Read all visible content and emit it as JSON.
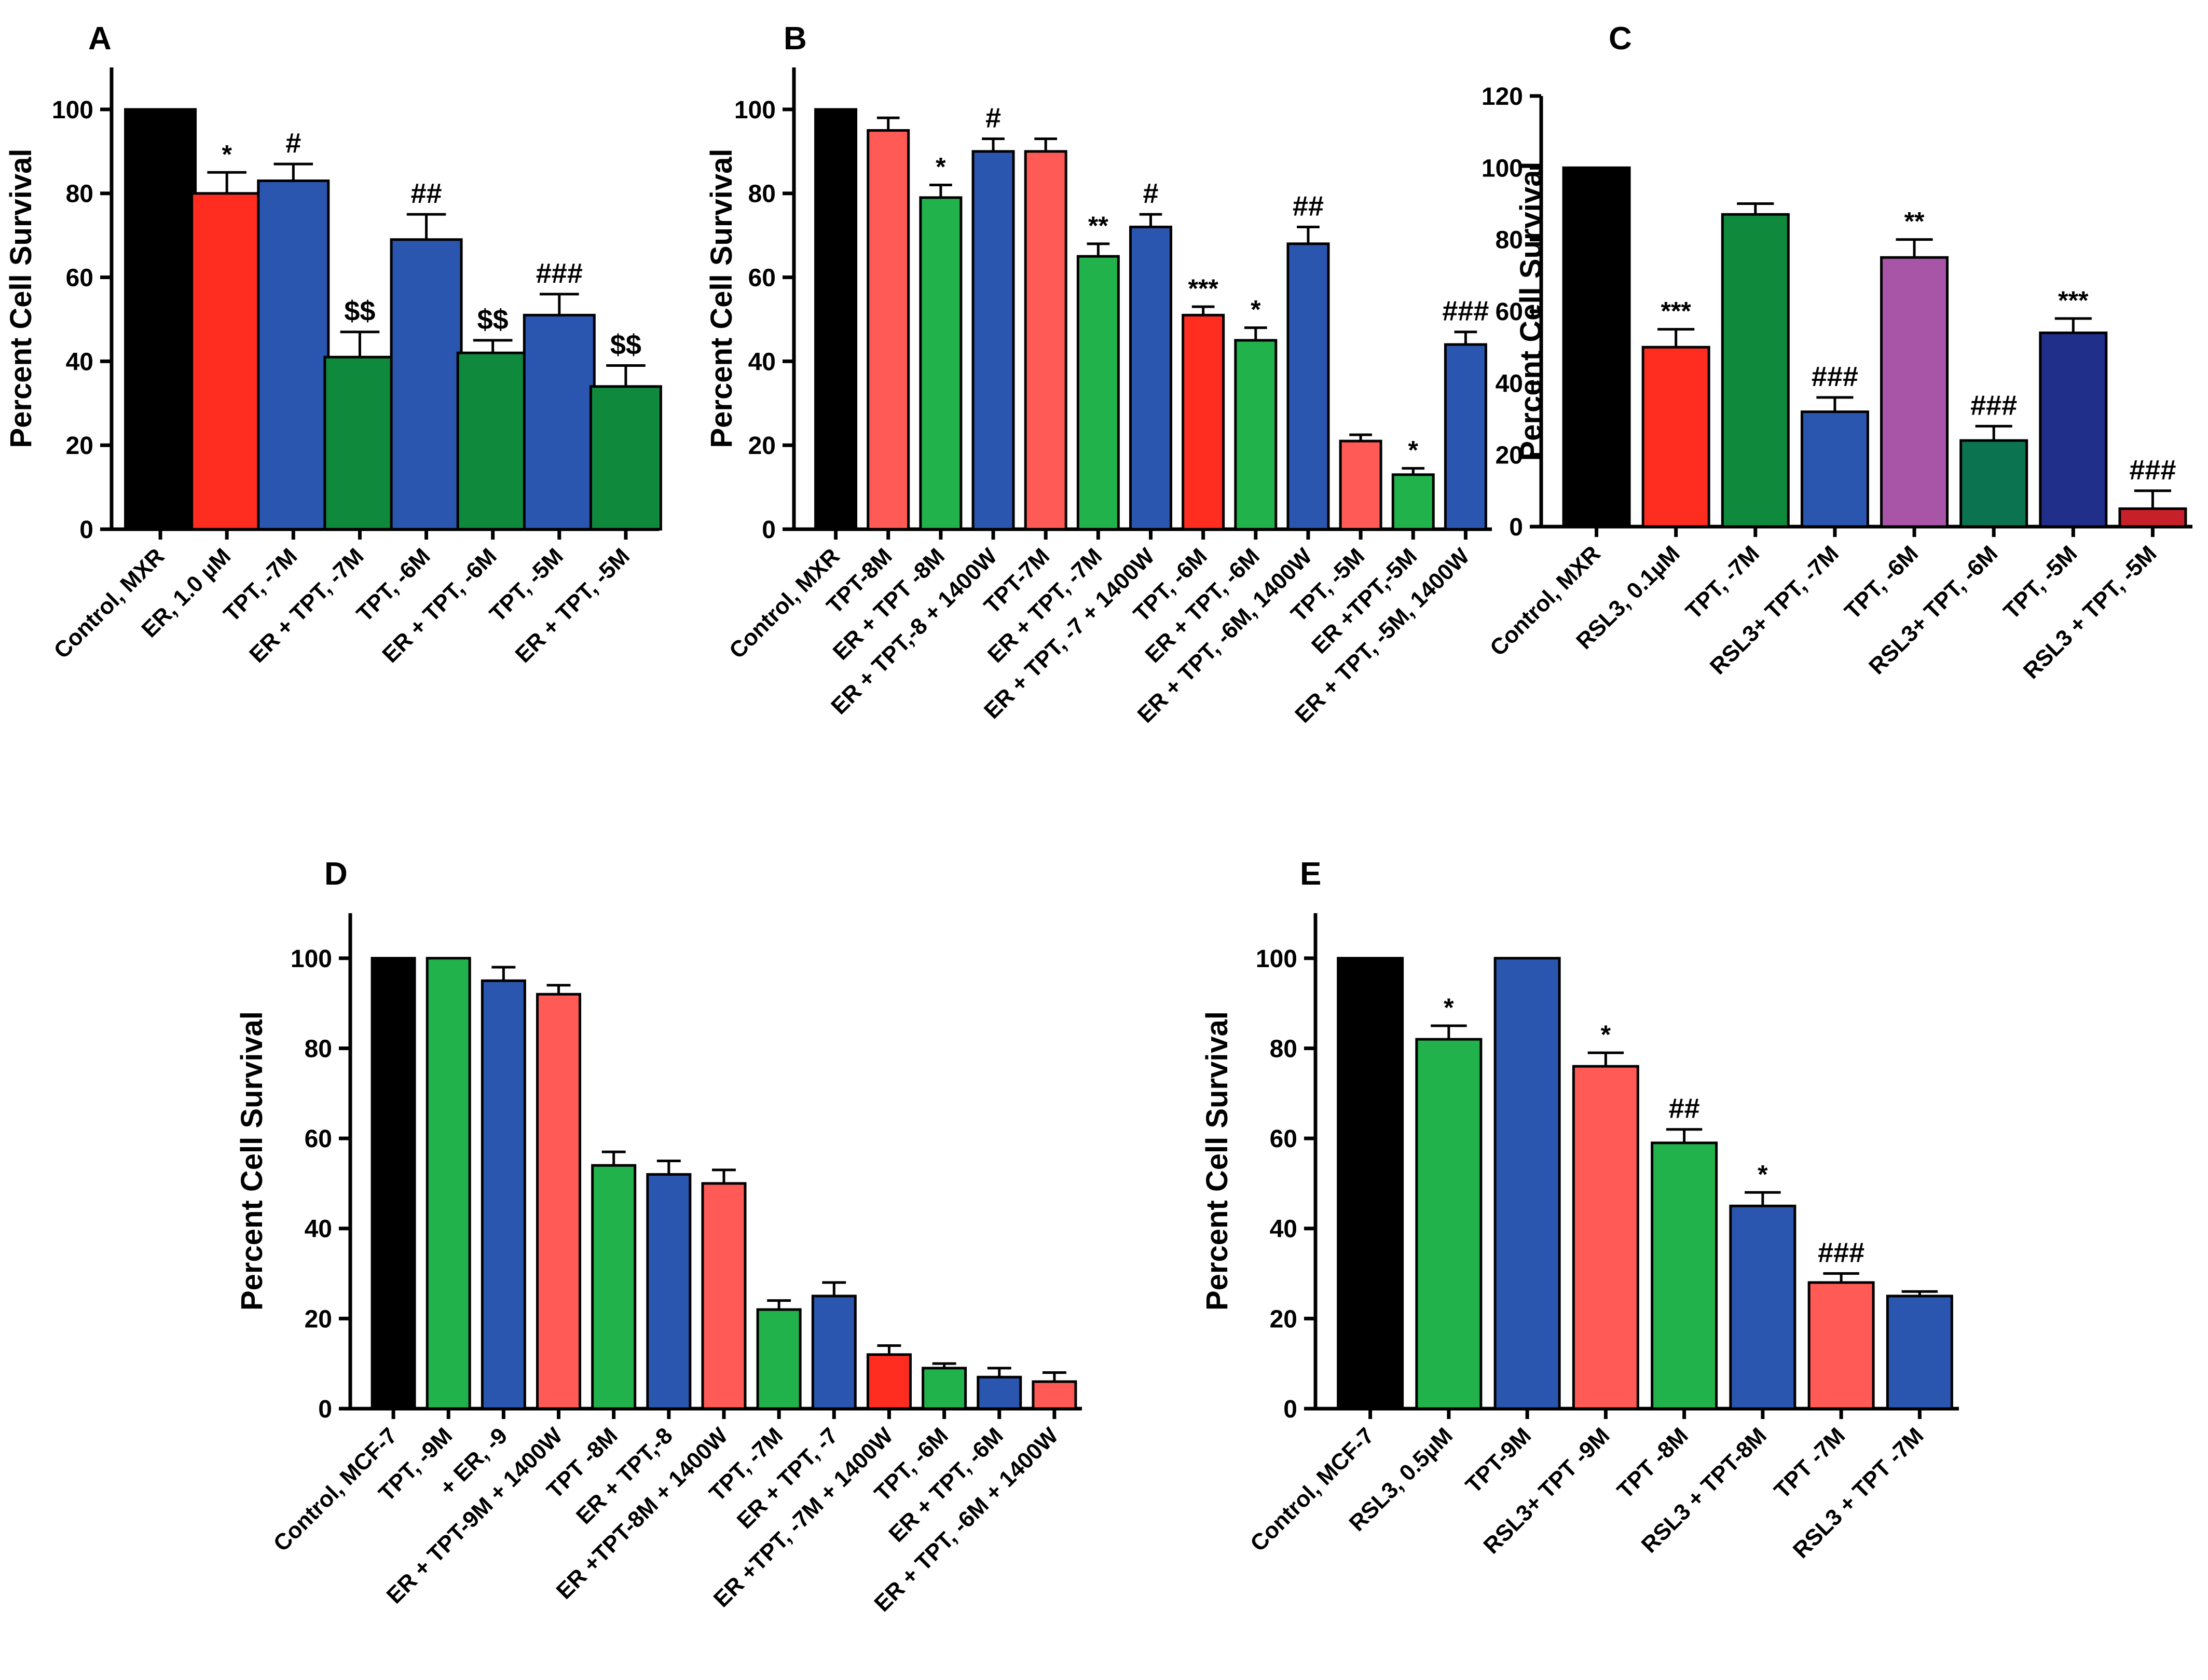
{
  "figure": {
    "panel_count": 5
  },
  "chart_data": [
    {
      "panel": "A",
      "type": "bar",
      "title": "",
      "xlabel": "",
      "ylabel": "Percent Cell Survival",
      "ylim": [
        0,
        110
      ],
      "yticks": [
        0,
        20,
        40,
        60,
        80,
        100
      ],
      "categories": [
        "Control, MXR",
        "ER, 1.0 µM",
        "TPT, -7M",
        "ER + TPT, -7M",
        "TPT, -6M",
        "ER + TPT, -6M",
        "TPT, -5M",
        "ER + TPT, -5M"
      ],
      "values": [
        100,
        80,
        83,
        41,
        69,
        42,
        51,
        34
      ],
      "errors": [
        0,
        5,
        4,
        6,
        6,
        3,
        5,
        5
      ],
      "annotations": [
        "",
        "*",
        "#",
        "$$",
        "##",
        "$$",
        "###",
        "$$"
      ],
      "colors": [
        "#000000",
        "#ff2d20",
        "#2a56b0",
        "#0f8a3c",
        "#2a56b0",
        "#0f8a3c",
        "#2a56b0",
        "#0f8a3c"
      ]
    },
    {
      "panel": "B",
      "type": "bar",
      "title": "",
      "xlabel": "",
      "ylabel": "Percent Cell Survival",
      "ylim": [
        0,
        110
      ],
      "yticks": [
        0,
        20,
        40,
        60,
        80,
        100
      ],
      "categories": [
        "Control, MXR",
        "TPT-8M",
        "ER + TPT -8M",
        "ER + TPT,-8 + 1400W",
        "TPT-7M",
        "ER + TPT, -7M",
        "ER + TPT, -7 + 1400W",
        "TPT, -6M",
        "ER + TPT, -6M",
        "ER + TPT, -6M, 1400W",
        "TPT, -5M",
        "ER +TPT,-5M",
        "ER + TPT, -5M, 1400W"
      ],
      "values": [
        100,
        95,
        79,
        90,
        90,
        65,
        72,
        51,
        45,
        68,
        21,
        13,
        44
      ],
      "errors": [
        0,
        3,
        3,
        3,
        3,
        3,
        3,
        2,
        3,
        4,
        1.5,
        1.5,
        3
      ],
      "annotations": [
        "",
        "",
        "*",
        "#",
        "",
        "**",
        "#",
        "***",
        "*",
        "##",
        "",
        "*",
        "###"
      ],
      "colors": [
        "#000000",
        "#ff5a55",
        "#22b24c",
        "#2a56b0",
        "#ff5a55",
        "#22b24c",
        "#2a56b0",
        "#ff2d20",
        "#22b24c",
        "#2a56b0",
        "#ff5a55",
        "#22b24c",
        "#2a56b0"
      ]
    },
    {
      "panel": "C",
      "type": "bar",
      "title": "",
      "xlabel": "",
      "ylabel": "Percent Cell Survival",
      "ylim": [
        0,
        120
      ],
      "yticks": [
        0,
        20,
        40,
        60,
        80,
        100,
        120
      ],
      "categories": [
        "Control, MXR",
        "RSL3, 0.1µM",
        "TPT, -7M",
        "RSL3+ TPT, -7M",
        "TPT, -6M",
        "RSL3+ TPT, -6M",
        "TPT, -5M",
        "RSL3 + TPT, -5M"
      ],
      "values": [
        100,
        50,
        87,
        32,
        75,
        24,
        54,
        5
      ],
      "errors": [
        0,
        5,
        3,
        4,
        5,
        4,
        4,
        5
      ],
      "annotations": [
        "",
        "***",
        "",
        "###",
        "**",
        "###",
        "***",
        "###"
      ],
      "colors": [
        "#000000",
        "#ff2d20",
        "#0f8a3c",
        "#2a56b0",
        "#a855a8",
        "#0c7350",
        "#1f2f8a",
        "#c8202a"
      ]
    },
    {
      "panel": "D",
      "type": "bar",
      "title": "",
      "xlabel": "",
      "ylabel": "Percent Cell Survival",
      "ylim": [
        0,
        110
      ],
      "yticks": [
        0,
        20,
        40,
        60,
        80,
        100
      ],
      "categories": [
        "Control, MCF-7",
        "TPT, -9M",
        "+ ER, -9",
        "ER + TPT-9M + 1400W",
        "TPT -8M",
        "ER + TPT,-8",
        "ER +TPT-8M + 1400W",
        "TPT, -7M",
        "ER + TPT, -7",
        "ER +TPT, -7M + 1400W",
        "TPT, -6M",
        "ER + TPT, -6M",
        "ER + TPT, -6M + 1400W"
      ],
      "values": [
        100,
        100,
        95,
        92,
        54,
        52,
        50,
        22,
        25,
        12,
        9,
        7,
        6
      ],
      "errors": [
        0,
        0,
        3,
        2,
        3,
        3,
        3,
        2,
        3,
        2,
        1,
        2,
        2
      ],
      "annotations": [
        "",
        "",
        "",
        "",
        "",
        "",
        "",
        "",
        "",
        "",
        "",
        "",
        ""
      ],
      "colors": [
        "#000000",
        "#22b24c",
        "#2a56b0",
        "#ff5a55",
        "#22b24c",
        "#2a56b0",
        "#ff5a55",
        "#22b24c",
        "#2a56b0",
        "#ff2d20",
        "#22b24c",
        "#2a56b0",
        "#ff5a55"
      ]
    },
    {
      "panel": "E",
      "type": "bar",
      "title": "",
      "xlabel": "",
      "ylabel": "Percent Cell Survival",
      "ylim": [
        0,
        110
      ],
      "yticks": [
        0,
        20,
        40,
        60,
        80,
        100
      ],
      "categories": [
        "Control, MCF-7",
        "RSL3, 0.5µM",
        "TPT-9M",
        "RSL3+ TPT -9M",
        "TPT -8M",
        "RSL3 + TPT-8M",
        "TPT -7M",
        "RSL3 + TPT -7M"
      ],
      "values": [
        100,
        82,
        100,
        76,
        59,
        45,
        28,
        25
      ],
      "errors": [
        0,
        3,
        0,
        3,
        3,
        3,
        2,
        1
      ],
      "annotations": [
        "",
        "*",
        "",
        "*",
        "##",
        "*",
        "###",
        ""
      ],
      "colors": [
        "#000000",
        "#22b24c",
        "#2a56b0",
        "#ff5a55",
        "#22b24c",
        "#2a56b0",
        "#ff5a55",
        "#2a56b0"
      ]
    }
  ]
}
